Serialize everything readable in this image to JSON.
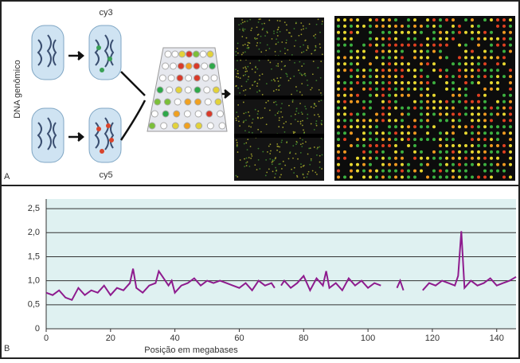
{
  "panel_a": {
    "label": "A",
    "top_dye": "cy3",
    "bottom_dye": "cy5",
    "side_label": "DNA genômico"
  },
  "chart_data": {
    "type": "line",
    "panel_label": "B",
    "x_label": "Posição em megabases",
    "x": [
      0,
      2,
      4,
      6,
      8,
      10,
      12,
      14,
      16,
      18,
      20,
      22,
      24,
      26,
      27,
      28,
      30,
      32,
      34,
      35,
      36,
      38,
      39,
      40,
      42,
      44,
      46,
      48,
      50,
      52,
      54,
      56,
      58,
      60,
      62,
      64,
      66,
      68,
      70,
      71,
      72,
      73,
      74,
      76,
      78,
      80,
      82,
      84,
      86,
      87,
      88,
      90,
      92,
      94,
      96,
      98,
      100,
      102,
      104,
      106,
      109,
      110,
      111,
      114,
      117,
      119,
      121,
      123,
      125,
      127,
      128,
      129,
      130,
      132,
      134,
      136,
      138,
      140,
      142,
      144,
      146
    ],
    "series": [
      {
        "color": "#8e1b8e",
        "values": [
          0.75,
          0.7,
          0.8,
          0.65,
          0.6,
          0.85,
          0.7,
          0.8,
          0.75,
          0.9,
          0.7,
          0.85,
          0.8,
          0.95,
          1.25,
          0.85,
          0.75,
          0.9,
          0.95,
          1.2,
          1.1,
          0.9,
          1.0,
          0.75,
          0.9,
          0.95,
          1.05,
          0.9,
          1.0,
          0.95,
          1.0,
          0.95,
          0.9,
          0.85,
          0.95,
          0.8,
          1.0,
          0.9,
          0.95,
          0.85,
          null,
          0.9,
          1.0,
          0.85,
          0.95,
          1.1,
          0.8,
          1.05,
          0.9,
          1.2,
          0.85,
          0.95,
          0.8,
          1.05,
          0.9,
          1.0,
          0.85,
          0.95,
          0.9,
          null,
          0.85,
          1.0,
          0.8,
          null,
          0.8,
          0.95,
          0.9,
          1.0,
          0.95,
          0.9,
          1.1,
          2.03,
          0.85,
          1.0,
          0.9,
          0.95,
          1.05,
          0.9,
          0.95,
          1.0,
          1.08
        ]
      }
    ],
    "xlim": [
      0,
      146
    ],
    "xticks": [
      0,
      20,
      40,
      60,
      80,
      100,
      120,
      140
    ],
    "ylim": [
      0,
      2.7
    ],
    "yticks": [
      0,
      {
        "value": 0.5,
        "label": "0,5"
      },
      {
        "value": 1.0,
        "label": "1,0"
      },
      {
        "value": 1.5,
        "label": "1,5"
      },
      {
        "value": 2.0,
        "label": "2,0"
      },
      {
        "value": 2.5,
        "label": "2,5"
      }
    ],
    "grid": true,
    "background": "#dff1f1"
  }
}
